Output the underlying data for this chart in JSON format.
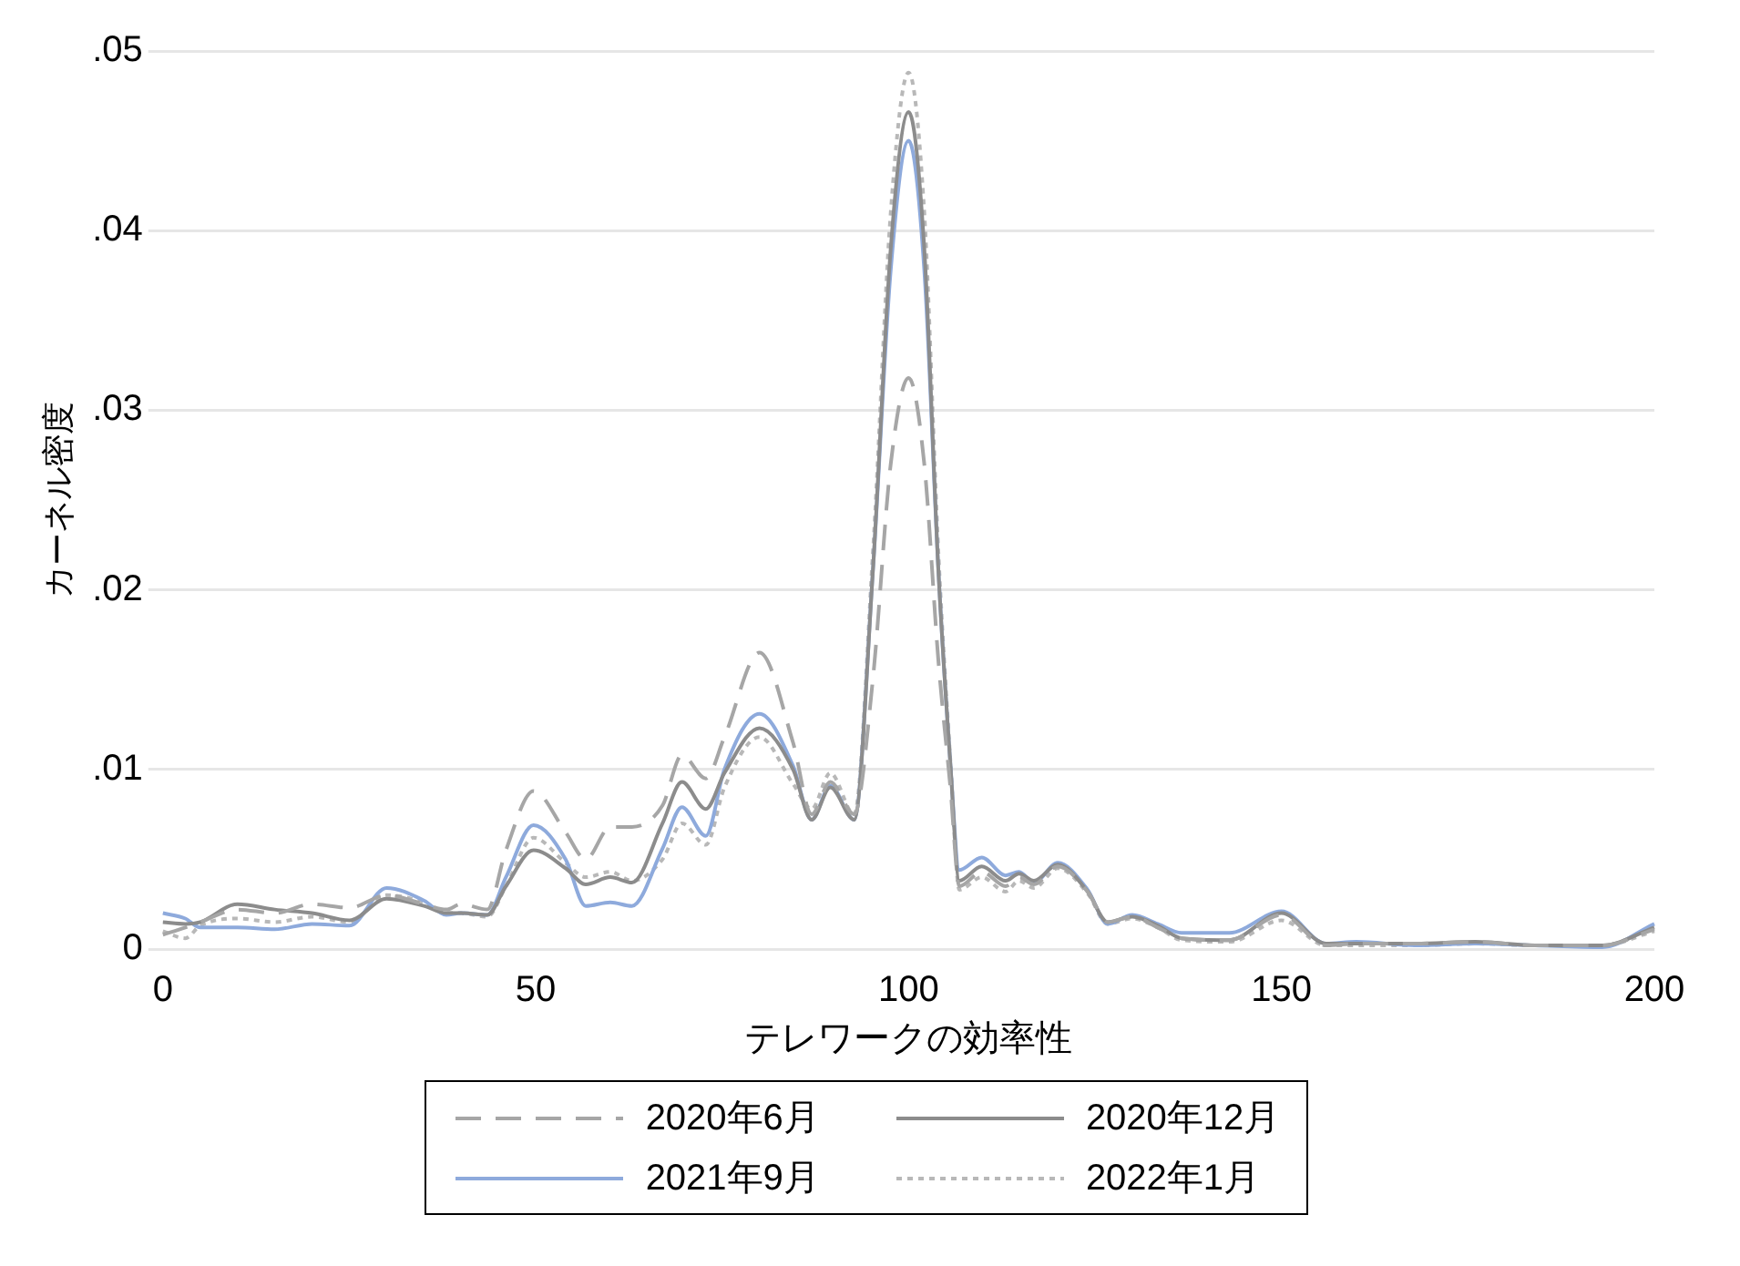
{
  "chart_data": {
    "type": "line",
    "xlabel": "テレワークの効率性",
    "ylabel": "カーネル密度",
    "x": [
      0,
      3,
      5,
      10,
      15,
      20,
      25,
      30,
      35,
      38,
      40,
      43.5,
      46,
      49.7,
      54,
      56.7,
      60,
      62.9,
      67,
      69.6,
      72.8,
      75.3,
      80,
      84.5,
      87,
      89.5,
      92.7,
      95.2,
      97.6,
      100,
      102.1,
      104,
      105.6,
      106.8,
      109.8,
      113,
      114.8,
      116.8,
      120,
      124,
      126.7,
      130,
      133.4,
      136.6,
      143,
      150,
      156,
      160,
      168,
      176,
      184,
      193,
      200
    ],
    "series": [
      {
        "name": "2020年6月",
        "color": "#a6a6a6",
        "line_style": "dashed",
        "values": [
          0.0008,
          0.0012,
          0.0015,
          0.0022,
          0.002,
          0.0025,
          0.0023,
          0.003,
          0.0025,
          0.0022,
          0.0025,
          0.0022,
          0.0055,
          0.0088,
          0.0065,
          0.005,
          0.0068,
          0.0068,
          0.008,
          0.0108,
          0.0095,
          0.0118,
          0.0165,
          0.0115,
          0.0075,
          0.0093,
          0.0075,
          0.015,
          0.027,
          0.0318,
          0.027,
          0.016,
          0.009,
          0.0035,
          0.0043,
          0.0035,
          0.004,
          0.0036,
          0.0046,
          0.0032,
          0.0015,
          0.0018,
          0.0012,
          0.0006,
          0.0005,
          0.0019,
          0.0002,
          0.0003,
          0.0003,
          0.0004,
          0.0002,
          0.0002,
          0.0011
        ]
      },
      {
        "name": "2020年12月",
        "color": "#8c8c8c",
        "line_style": "solid",
        "values": [
          0.0015,
          0.0014,
          0.0015,
          0.0025,
          0.0022,
          0.002,
          0.0016,
          0.0028,
          0.0024,
          0.002,
          0.002,
          0.0019,
          0.0035,
          0.0055,
          0.0045,
          0.0036,
          0.004,
          0.0037,
          0.007,
          0.0093,
          0.0078,
          0.0098,
          0.0123,
          0.01,
          0.0072,
          0.009,
          0.0072,
          0.021,
          0.039,
          0.0466,
          0.039,
          0.021,
          0.0103,
          0.0038,
          0.0046,
          0.0038,
          0.0042,
          0.0038,
          0.0047,
          0.0032,
          0.0015,
          0.0018,
          0.0013,
          0.0006,
          0.0005,
          0.002,
          0.0003,
          0.0003,
          0.0003,
          0.0004,
          0.0002,
          0.0002,
          0.0012
        ]
      },
      {
        "name": "2021年9月",
        "color": "#8eaadc",
        "line_style": "solid",
        "values": [
          0.002,
          0.0017,
          0.0012,
          0.0012,
          0.0011,
          0.0014,
          0.0013,
          0.0034,
          0.0027,
          0.0019,
          0.002,
          0.0019,
          0.004,
          0.0069,
          0.005,
          0.0024,
          0.0026,
          0.0024,
          0.0056,
          0.0079,
          0.0063,
          0.01,
          0.0131,
          0.0102,
          0.0072,
          0.0091,
          0.0072,
          0.021,
          0.0378,
          0.045,
          0.0378,
          0.021,
          0.0103,
          0.0044,
          0.0051,
          0.0041,
          0.0043,
          0.0037,
          0.0048,
          0.0033,
          0.0014,
          0.0019,
          0.0014,
          0.0009,
          0.0009,
          0.0021,
          0.0003,
          0.0004,
          0.0002,
          0.0003,
          0.0002,
          0.0001,
          0.0014
        ]
      },
      {
        "name": "2022年1月",
        "color": "#b8b8b8",
        "line_style": "dotted",
        "values": [
          0.001,
          0.0006,
          0.0013,
          0.0017,
          0.0015,
          0.0018,
          0.0015,
          0.003,
          0.0026,
          0.002,
          0.002,
          0.0018,
          0.0035,
          0.0062,
          0.0048,
          0.004,
          0.0043,
          0.0038,
          0.005,
          0.007,
          0.0058,
          0.009,
          0.0118,
          0.0092,
          0.0078,
          0.0098,
          0.0075,
          0.022,
          0.041,
          0.0488,
          0.041,
          0.022,
          0.0105,
          0.0033,
          0.004,
          0.0032,
          0.0038,
          0.0034,
          0.0045,
          0.0031,
          0.0014,
          0.0017,
          0.0012,
          0.0005,
          0.0004,
          0.0016,
          0.0002,
          0.0002,
          0.0002,
          0.0003,
          0.0002,
          0.0002,
          0.001
        ]
      }
    ],
    "xlim": [
      0,
      200
    ],
    "xticks": [
      0,
      50,
      100,
      150,
      200
    ],
    "ylim": [
      0,
      0.05
    ],
    "yticks": [
      {
        "value": 0,
        "label": "0"
      },
      {
        "value": 0.01,
        "label": ".01"
      },
      {
        "value": 0.02,
        "label": ".02"
      },
      {
        "value": 0.03,
        "label": ".03"
      },
      {
        "value": 0.04,
        "label": ".04"
      },
      {
        "value": 0.05,
        "label": ".05"
      }
    ],
    "grid": "y",
    "legend": "bottom",
    "marker": "none"
  }
}
